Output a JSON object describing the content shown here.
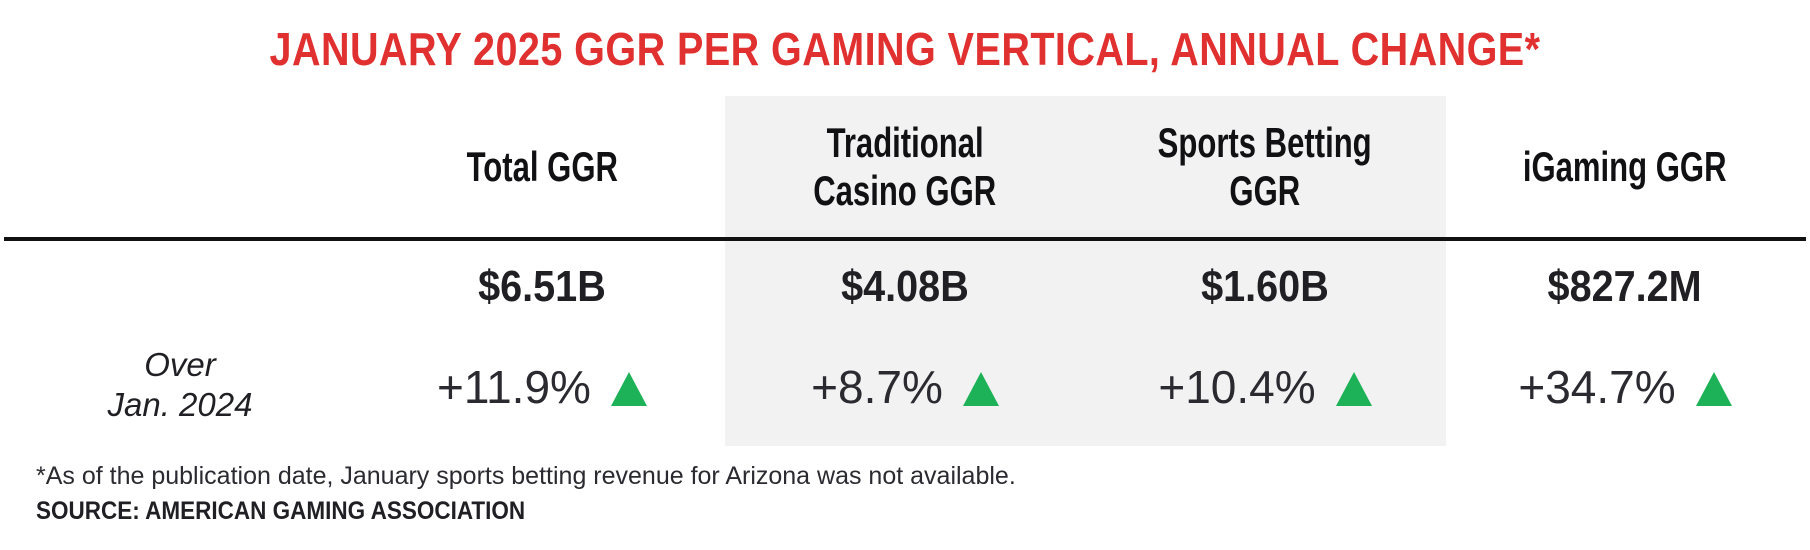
{
  "title": "JANUARY 2025 GGR PER GAMING VERTICAL, ANNUAL CHANGE*",
  "columns": [
    {
      "header_line1": "Total GGR",
      "header_line2": "",
      "value": "$6.51B",
      "change": "+11.9%",
      "trend": "up",
      "shaded": false
    },
    {
      "header_line1": "Traditional",
      "header_line2": "Casino GGR",
      "value": "$4.08B",
      "change": "+8.7%",
      "trend": "up",
      "shaded": true
    },
    {
      "header_line1": "Sports Betting",
      "header_line2": "GGR",
      "value": "$1.60B",
      "change": "+10.4%",
      "trend": "up",
      "shaded": true
    },
    {
      "header_line1": "iGaming GGR",
      "header_line2": "",
      "value": "$827.2M",
      "change": "+34.7%",
      "trend": "up",
      "shaded": false
    }
  ],
  "row_label": {
    "line1": "Over",
    "line2": "Jan. 2024"
  },
  "footnote": "*As of the publication date, January sports betting revenue for Arizona was not available.",
  "source": "SOURCE: AMERICAN GAMING ASSOCIATION",
  "colors": {
    "title": "#e03030",
    "up_arrow": "#1db257",
    "shade": "#f2f2f2"
  },
  "icons": {
    "trend_up": "green-up-triangle-icon"
  }
}
